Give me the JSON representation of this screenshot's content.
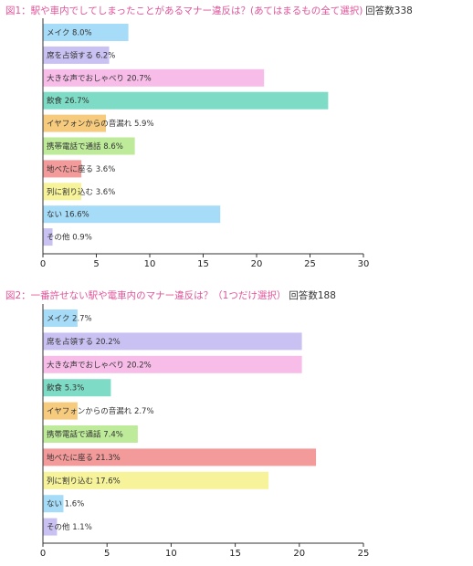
{
  "chart_data": [
    {
      "type": "bar",
      "orientation": "horizontal",
      "title": "図1：駅や車内でしてしまったことがあるマナー違反は？(あてはまるもの全て選択)",
      "respondents": "回答数338",
      "categories": [
        "メイク",
        "席を占領する",
        "大きな声でおしゃべり",
        "飲食",
        "イヤフォンからの音漏れ",
        "携帯電話で通話",
        "地べたに座る",
        "列に割り込む",
        "ない",
        "その他"
      ],
      "values": [
        8.0,
        6.2,
        20.7,
        26.7,
        5.9,
        8.6,
        3.6,
        3.6,
        16.6,
        0.9
      ],
      "value_labels": [
        "8.0%",
        "6.2%",
        "20.7%",
        "26.7%",
        "5.9%",
        "8.6%",
        "3.6%",
        "3.6%",
        "16.6%",
        "0.9%"
      ],
      "colors": [
        "#a6dcf7",
        "#c9c1f2",
        "#f7bde8",
        "#7edcc6",
        "#f6cb7e",
        "#bdeb9a",
        "#f39a9a",
        "#f6f39a",
        "#a6dcf7",
        "#c9c1f2"
      ],
      "xlim": [
        0,
        30
      ],
      "xticks": [
        "0",
        "5",
        "10",
        "15",
        "20",
        "25",
        "30"
      ],
      "grid": false,
      "xlabel": "",
      "ylabel": ""
    },
    {
      "type": "bar",
      "orientation": "horizontal",
      "title": "図2：一番許せない駅や電車内のマナー違反は？（1つだけ選択）",
      "respondents": "回答数188",
      "categories": [
        "メイク",
        "席を占領する",
        "大きな声でおしゃべり",
        "飲食",
        "イヤフォンからの音漏れ",
        "携帯電話で通話",
        "地べたに座る",
        "列に割り込む",
        "ない",
        "その他"
      ],
      "values": [
        2.7,
        20.2,
        20.2,
        5.3,
        2.7,
        7.4,
        21.3,
        17.6,
        1.6,
        1.1
      ],
      "value_labels": [
        "2.7%",
        "20.2%",
        "20.2%",
        "5.3%",
        "2.7%",
        "7.4%",
        "21.3%",
        "17.6%",
        "1.6%",
        "1.1%"
      ],
      "colors": [
        "#a6dcf7",
        "#c9c1f2",
        "#f7bde8",
        "#7edcc6",
        "#f6cb7e",
        "#bdeb9a",
        "#f39a9a",
        "#f6f39a",
        "#a6dcf7",
        "#c9c1f2"
      ],
      "xlim": [
        0,
        25
      ],
      "xticks": [
        "0",
        "5",
        "10",
        "15",
        "20",
        "25"
      ],
      "grid": false,
      "xlabel": "",
      "ylabel": ""
    }
  ]
}
